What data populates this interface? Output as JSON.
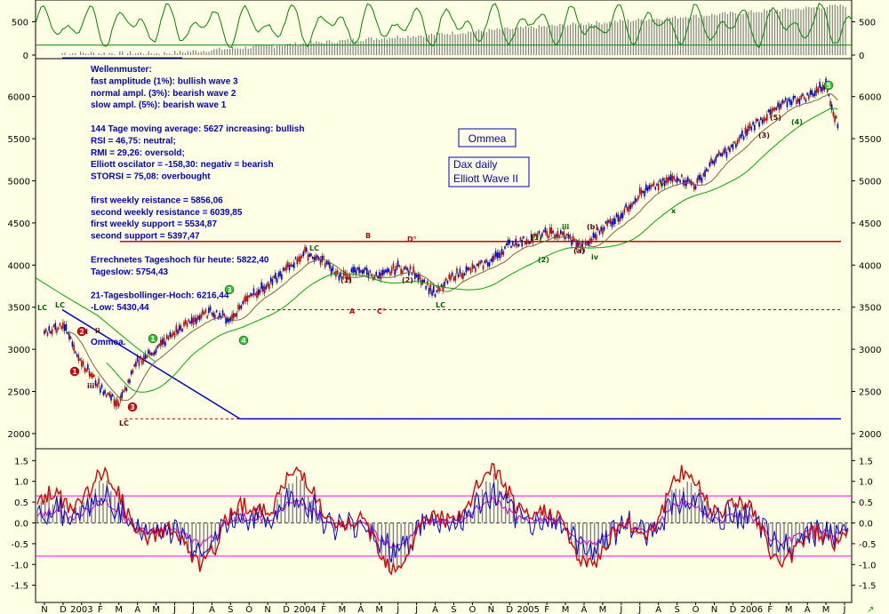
{
  "chart_data": [
    {
      "type": "bar",
      "panel": "volume",
      "y_ticks": [
        "0",
        "500"
      ],
      "ylim": [
        0,
        800
      ],
      "series": [
        {
          "kind": "bar",
          "color": "#808080"
        },
        {
          "kind": "line",
          "color": "#008800"
        }
      ]
    },
    {
      "type": "line",
      "panel": "price",
      "x_ticks": [
        "N",
        "D",
        "2003",
        "F",
        "M",
        "A",
        "M",
        "J",
        "J",
        "A",
        "S",
        "O",
        "N",
        "D",
        "2004",
        "F",
        "M",
        "A",
        "M",
        "J",
        "J",
        "A",
        "S",
        "O",
        "N",
        "D",
        "2005",
        "F",
        "M",
        "A",
        "M",
        "J",
        "J",
        "A",
        "S",
        "O",
        "N",
        "D",
        "2006",
        "F",
        "M",
        "A",
        "M",
        "J"
      ],
      "y_ticks": [
        "2000",
        "2500",
        "3000",
        "3500",
        "4000",
        "4500",
        "5000",
        "5500",
        "6000"
      ],
      "ylim": [
        1820,
        6450
      ],
      "horizontal_lines": [
        {
          "value": 4280,
          "color": "#cc0000",
          "style": "solid"
        },
        {
          "value": 3470,
          "color": "#cc0000",
          "style": "dashed"
        },
        {
          "value": 2175,
          "color": "#cc0000",
          "style": "dashed"
        },
        {
          "value": 2175,
          "color": "#0000cc",
          "style": "solid"
        }
      ],
      "series": [
        {
          "kind": "candles",
          "approx_close": [
            {
              "x": "2002-11",
              "y": 3200
            },
            {
              "x": "2002-12",
              "y": 3300
            },
            {
              "x": "2003-01",
              "y": 2850
            },
            {
              "x": "2003-02",
              "y": 2550
            },
            {
              "x": "2003-03",
              "y": 2350
            },
            {
              "x": "2003-04",
              "y": 2850
            },
            {
              "x": "2003-05",
              "y": 3000
            },
            {
              "x": "2003-06",
              "y": 3200
            },
            {
              "x": "2003-07",
              "y": 3350
            },
            {
              "x": "2003-08",
              "y": 3450
            },
            {
              "x": "2003-09",
              "y": 3350
            },
            {
              "x": "2003-10",
              "y": 3650
            },
            {
              "x": "2003-11",
              "y": 3750
            },
            {
              "x": "2003-12",
              "y": 3950
            },
            {
              "x": "2004-01",
              "y": 4150
            },
            {
              "x": "2004-02",
              "y": 4050
            },
            {
              "x": "2004-03",
              "y": 3850
            },
            {
              "x": "2004-04",
              "y": 3950
            },
            {
              "x": "2004-05",
              "y": 3850
            },
            {
              "x": "2004-06",
              "y": 3980
            },
            {
              "x": "2004-07",
              "y": 3900
            },
            {
              "x": "2004-08",
              "y": 3650
            },
            {
              "x": "2004-09",
              "y": 3880
            },
            {
              "x": "2004-10",
              "y": 3950
            },
            {
              "x": "2004-11",
              "y": 4050
            },
            {
              "x": "2004-12",
              "y": 4250
            },
            {
              "x": "2005-01",
              "y": 4300
            },
            {
              "x": "2005-02",
              "y": 4380
            },
            {
              "x": "2005-03",
              "y": 4350
            },
            {
              "x": "2005-04",
              "y": 4200
            },
            {
              "x": "2005-05",
              "y": 4450
            },
            {
              "x": "2005-06",
              "y": 4600
            },
            {
              "x": "2005-07",
              "y": 4850
            },
            {
              "x": "2005-08",
              "y": 4950
            },
            {
              "x": "2005-09",
              "y": 5050
            },
            {
              "x": "2005-10",
              "y": 4950
            },
            {
              "x": "2005-11",
              "y": 5250
            },
            {
              "x": "2005-12",
              "y": 5400
            },
            {
              "x": "2006-01",
              "y": 5650
            },
            {
              "x": "2006-02",
              "y": 5800
            },
            {
              "x": "2006-03",
              "y": 5950
            },
            {
              "x": "2006-04",
              "y": 6000
            },
            {
              "x": "2006-05",
              "y": 6150
            },
            {
              "x": "2006-05-20",
              "y": 5650
            }
          ]
        },
        {
          "kind": "moving-average",
          "color": "#00aa00"
        },
        {
          "kind": "moving-average",
          "color": "#806040"
        },
        {
          "kind": "trendline",
          "color": "#0000cc"
        }
      ]
    },
    {
      "type": "line",
      "panel": "oscillator",
      "y_ticks": [
        "-1.5",
        "-1.0",
        "-0.5",
        "0.0",
        "0.5",
        "1.0",
        "1.5"
      ],
      "ylim": [
        -1.7,
        1.7
      ],
      "horizontal_lines": [
        {
          "value": 0.65,
          "color": "#ff00ff"
        },
        {
          "value": -0.8,
          "color": "#ff00ff"
        },
        {
          "value": 0.0,
          "color": "#404040",
          "style": "dashed"
        }
      ],
      "series": [
        {
          "kind": "histogram",
          "color": "#808080"
        },
        {
          "kind": "line",
          "color": "#dd0000"
        },
        {
          "kind": "line",
          "color": "#0000dd"
        },
        {
          "kind": "line",
          "color": "#cc00cc"
        }
      ]
    }
  ],
  "annotations": {
    "lines": [
      "Wellenmuster:",
      "fast amplitude (1%): bullish wave 3",
      "normal ampl. (3%): bearish wave 2",
      "slow ampl. (5%): bearish wave 1",
      "",
      "144 Tage moving average: 5627 increasing: bullish",
      "RSI = 46,75: neutral;",
      "RMI = 29,26: oversold;",
      "Elliott oscilator = -158,30: negativ = bearish",
      "STORSI = 75,08: overbought",
      "",
      "first weekly reistance = 5856,06",
      "second weekly resistance = 6039,85",
      "first weekly support = 5534,87",
      "second support = 5397,47",
      "",
      "Errechnetes Tageshoch für heute: 5822,40",
      "Tageslow: 5754,43",
      "",
      "21-Tagesbollinger-Hoch: 6216,44",
      "-Low: 5430,44"
    ],
    "ommea_small": "Ommea.",
    "brand_box": "Ommea",
    "title_line1": "Dax daily",
    "title_line2": "Elliott Wave II"
  },
  "wave_labels": [
    {
      "t": "LC",
      "c": "#006600"
    },
    {
      "t": "LC",
      "c": "#006600"
    },
    {
      "t": "LC",
      "c": "#660000"
    },
    {
      "t": "LC",
      "c": "#006600"
    },
    {
      "t": "LC",
      "c": "#006600"
    },
    {
      "t": "B",
      "c": "#cc0000"
    },
    {
      "t": "D°",
      "c": "#cc0000"
    },
    {
      "t": "A",
      "c": "#cc0000"
    },
    {
      "t": "C°",
      "c": "#cc0000"
    },
    {
      "t": "(1)",
      "c": "#660000"
    },
    {
      "t": "(2)",
      "c": "#660000"
    },
    {
      "t": "ii",
      "c": "#660000"
    },
    {
      "t": "iii",
      "c": "#660000"
    },
    {
      "t": "2ii",
      "c": "#660000"
    },
    {
      "t": "(1)",
      "c": "#006600"
    },
    {
      "t": "(2)",
      "c": "#006600"
    },
    {
      "t": "(b)",
      "c": "#660000"
    },
    {
      "t": "(a)",
      "c": "#660000"
    },
    {
      "t": "iii",
      "c": "#006600"
    },
    {
      "t": "v",
      "c": "#006600"
    },
    {
      "t": "x",
      "c": "#006600"
    },
    {
      "t": "(4)",
      "c": "#006600"
    },
    {
      "t": "(3)",
      "c": "#660000"
    },
    {
      "t": "(5)",
      "c": "#660000"
    },
    {
      "t": "iv",
      "c": "#006600"
    }
  ],
  "wave_markers": [
    {
      "t": "1",
      "c": "#22cc22"
    },
    {
      "t": "3",
      "c": "#22cc22"
    },
    {
      "t": "4",
      "c": "#22cc22"
    },
    {
      "t": "5",
      "c": "#22cc22"
    },
    {
      "t": "2",
      "c": "#dd0000"
    },
    {
      "t": "1",
      "c": "#dd0000"
    },
    {
      "t": "3",
      "c": "#dd0000"
    }
  ]
}
